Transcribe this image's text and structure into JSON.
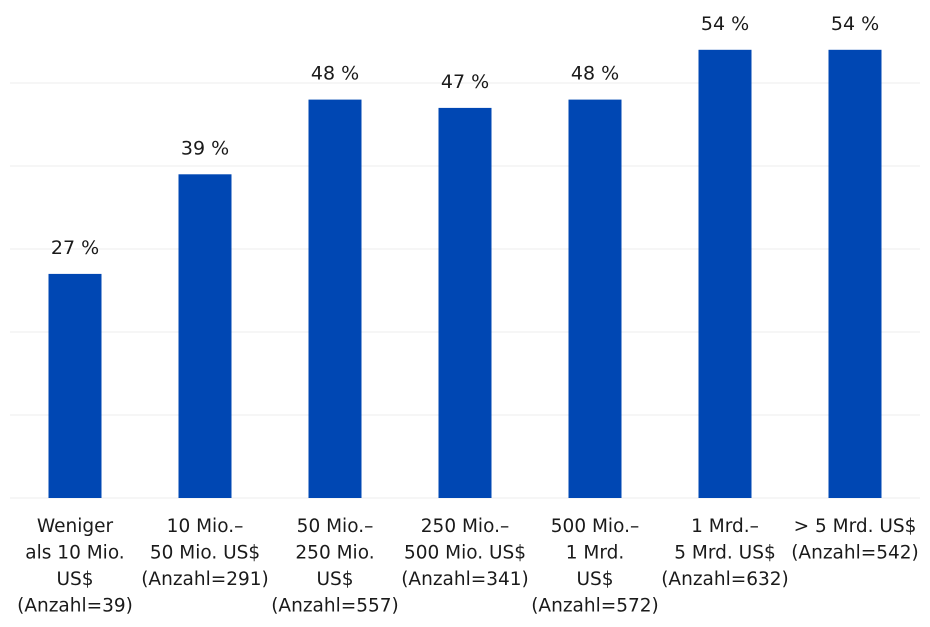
{
  "chart_data": {
    "type": "bar",
    "title": "",
    "xlabel": "",
    "ylabel": "",
    "ylim": [
      0,
      60
    ],
    "grid": true,
    "bar_color": "#0047b3",
    "categories": [
      [
        "Weniger",
        "als 10 Mio.",
        "US$",
        "(Anzahl=39)"
      ],
      [
        "10 Mio.–",
        "50 Mio. US$",
        "(Anzahl=291)"
      ],
      [
        "50 Mio.–",
        "250 Mio.",
        "US$",
        "(Anzahl=557)"
      ],
      [
        "250 Mio.–",
        "500 Mio. US$",
        "(Anzahl=341)"
      ],
      [
        "500 Mio.–",
        "1 Mrd.",
        "US$",
        "(Anzahl=572)"
      ],
      [
        "1 Mrd.–",
        "5 Mrd. US$",
        "(Anzahl=632)"
      ],
      [
        "> 5 Mrd. US$",
        "(Anzahl=542)"
      ]
    ],
    "values": [
      27,
      39,
      48,
      47,
      48,
      54,
      54
    ],
    "value_labels": [
      "27 %",
      "39 %",
      "48 %",
      "47 %",
      "48 %",
      "54 %",
      "54 %"
    ]
  }
}
